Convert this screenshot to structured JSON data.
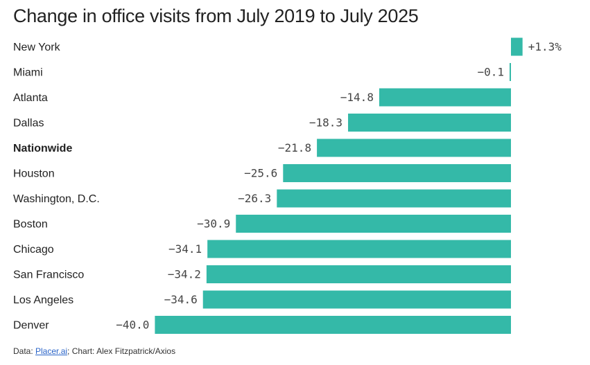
{
  "chart_data": {
    "type": "bar",
    "orientation": "horizontal",
    "title": "Change in office visits from July 2019 to July 2025",
    "categories": [
      "New York",
      "Miami",
      "Atlanta",
      "Dallas",
      "Nationwide",
      "Houston",
      "Washington, D.C.",
      "Boston",
      "Chicago",
      "San Francisco",
      "Los Angeles",
      "Denver"
    ],
    "values": [
      1.3,
      -0.1,
      -14.8,
      -18.3,
      -21.8,
      -25.6,
      -26.3,
      -30.9,
      -34.1,
      -34.2,
      -34.6,
      -40.0
    ],
    "value_labels": [
      "+1.3%",
      "−0.1",
      "−14.8",
      "−18.3",
      "−21.8",
      "−25.6",
      "−26.3",
      "−30.9",
      "−34.1",
      "−34.2",
      "−34.6",
      "−40.0"
    ],
    "highlight_category": "Nationwide",
    "bar_color": "#34b9a8",
    "grid": false,
    "legend": "none"
  },
  "footer": {
    "prefix": "Data: ",
    "source_link": "Placer.ai",
    "suffix": "; Chart: Alex Fitzpatrick/Axios"
  }
}
